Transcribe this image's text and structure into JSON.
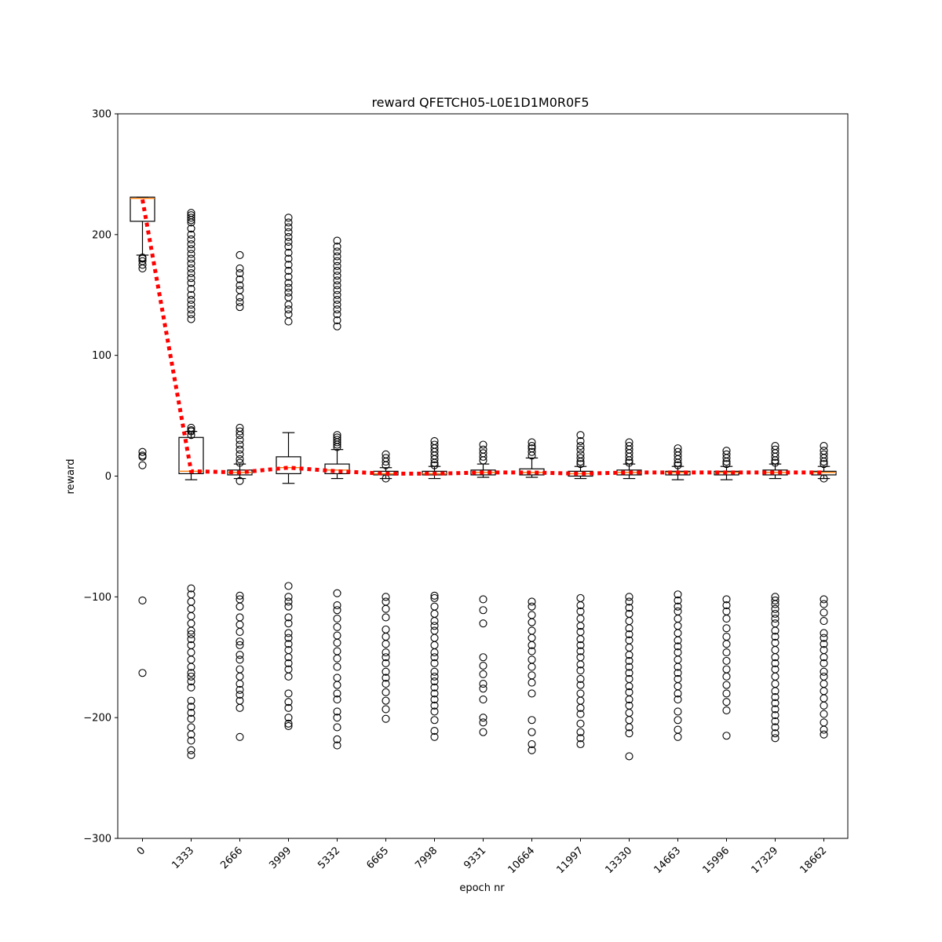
{
  "chart_data": {
    "type": "box",
    "title": "reward QFETCH05-L0E1D1M0R0F5",
    "xlabel": "epoch nr",
    "ylabel": "reward",
    "ylim": [
      -300,
      300
    ],
    "yticks": [
      "300",
      "200",
      "100",
      "0",
      "−100",
      "−200",
      "−300"
    ],
    "ytick_values": [
      300,
      200,
      100,
      0,
      -100,
      -200,
      -300
    ],
    "categories": [
      "0",
      "1333",
      "2666",
      "3999",
      "5332",
      "6665",
      "7998",
      "9331",
      "10664",
      "11997",
      "13330",
      "14663",
      "15996",
      "17329",
      "18662"
    ],
    "grid": false,
    "colors": {
      "box": "#000000",
      "median": "#ff7f0e",
      "mean_line": "#ff0000"
    },
    "boxes": [
      {
        "q1": 211,
        "median": 230,
        "q3": 231,
        "whislo": 183,
        "whishi": 231
      },
      {
        "q1": 2,
        "median": 4,
        "q3": 32,
        "whislo": -3,
        "whishi": 37
      },
      {
        "q1": 1,
        "median": 3,
        "q3": 5,
        "whislo": -2,
        "whishi": 10
      },
      {
        "q1": 2,
        "median": 7,
        "q3": 16,
        "whislo": -6,
        "whishi": 36
      },
      {
        "q1": 2,
        "median": 5,
        "q3": 10,
        "whislo": -2,
        "whishi": 22
      },
      {
        "q1": 1,
        "median": 2,
        "q3": 4,
        "whislo": -2,
        "whishi": 7
      },
      {
        "q1": 1,
        "median": 2,
        "q3": 4,
        "whislo": -2,
        "whishi": 8
      },
      {
        "q1": 1,
        "median": 3,
        "q3": 5,
        "whislo": -1,
        "whishi": 10
      },
      {
        "q1": 1,
        "median": 3,
        "q3": 6,
        "whislo": -1,
        "whishi": 15
      },
      {
        "q1": 0,
        "median": 2,
        "q3": 4,
        "whislo": -2,
        "whishi": 8
      },
      {
        "q1": 1,
        "median": 3,
        "q3": 5,
        "whislo": -2,
        "whishi": 10
      },
      {
        "q1": 1,
        "median": 3,
        "q3": 4,
        "whislo": -3,
        "whishi": 8
      },
      {
        "q1": 1,
        "median": 3,
        "q3": 4,
        "whislo": -3,
        "whishi": 8
      },
      {
        "q1": 1,
        "median": 3,
        "q3": 5,
        "whislo": -2,
        "whishi": 10
      },
      {
        "q1": 1,
        "median": 3,
        "q3": 4,
        "whislo": -2,
        "whishi": 8
      }
    ],
    "outliers": [
      [
        172,
        175,
        178,
        180,
        181,
        20,
        17,
        16,
        9,
        -103,
        -163
      ],
      [
        218,
        216,
        214,
        212,
        210,
        205,
        200,
        196,
        192,
        188,
        184,
        180,
        176,
        172,
        168,
        164,
        160,
        155,
        150,
        146,
        142,
        138,
        134,
        130,
        40,
        38,
        37,
        34,
        -93,
        -98,
        -104,
        -110,
        -116,
        -122,
        -128,
        -131,
        -135,
        -140,
        -146,
        -152,
        -158,
        -163,
        -166,
        -170,
        -175,
        -186,
        -191,
        -196,
        -201,
        -208,
        -214,
        -219,
        -227,
        -231
      ],
      [
        183,
        172,
        168,
        163,
        158,
        154,
        148,
        144,
        140,
        40,
        37,
        34,
        30,
        26,
        22,
        18,
        14,
        11,
        -4,
        -99,
        -102,
        -108,
        -117,
        -123,
        -129,
        -137,
        -140,
        -148,
        -152,
        -160,
        -166,
        -172,
        -177,
        -181,
        -186,
        -192,
        -216
      ],
      [
        214,
        210,
        206,
        202,
        198,
        194,
        190,
        185,
        180,
        175,
        170,
        165,
        160,
        156,
        152,
        148,
        142,
        138,
        134,
        128,
        -91,
        -100,
        -104,
        -108,
        -117,
        -122,
        -130,
        -134,
        -139,
        -144,
        -150,
        -155,
        -160,
        -166,
        -180,
        -187,
        -192,
        -200,
        -205,
        -207
      ],
      [
        195,
        190,
        186,
        182,
        178,
        174,
        170,
        166,
        162,
        158,
        154,
        150,
        146,
        142,
        138,
        134,
        129,
        124,
        34,
        32,
        30,
        28,
        26,
        24,
        -97,
        -107,
        -111,
        -118,
        -125,
        -132,
        -138,
        -145,
        -151,
        -158,
        -167,
        -173,
        -180,
        -185,
        -195,
        -200,
        -208,
        -218,
        -223
      ],
      [
        18,
        15,
        12,
        9,
        -2,
        -100,
        -104,
        -110,
        -117,
        -127,
        -133,
        -139,
        -146,
        -150,
        -155,
        -162,
        -167,
        -172,
        -179,
        -186,
        -193,
        -201
      ],
      [
        29,
        26,
        23,
        20,
        17,
        14,
        11,
        9,
        -99,
        -101,
        -108,
        -114,
        -120,
        -124,
        -128,
        -134,
        -140,
        -146,
        -150,
        -155,
        -162,
        -166,
        -170,
        -175,
        -180,
        -185,
        -190,
        -195,
        -202,
        -211,
        -216
      ],
      [
        26,
        22,
        19,
        16,
        13,
        -102,
        -111,
        -122,
        -150,
        -157,
        -164,
        -172,
        -176,
        -185,
        -200,
        -204,
        -212
      ],
      [
        28,
        25,
        23,
        20,
        17,
        -104,
        -108,
        -115,
        -121,
        -128,
        -134,
        -140,
        -145,
        -152,
        -158,
        -165,
        -171,
        -180,
        -202,
        -212,
        -222,
        -227
      ],
      [
        34,
        29,
        25,
        22,
        18,
        15,
        12,
        10,
        -101,
        -107,
        -112,
        -118,
        -124,
        -129,
        -135,
        -140,
        -145,
        -150,
        -156,
        -161,
        -168,
        -173,
        -180,
        -186,
        -192,
        -197,
        -205,
        -212,
        -217,
        -222
      ],
      [
        28,
        25,
        22,
        19,
        16,
        13,
        11,
        -100,
        -104,
        -109,
        -114,
        -120,
        -126,
        -131,
        -136,
        -142,
        -148,
        -153,
        -158,
        -163,
        -168,
        -174,
        -179,
        -185,
        -190,
        -196,
        -202,
        -208,
        -213,
        -232
      ],
      [
        23,
        20,
        17,
        14,
        11,
        9,
        -98,
        -103,
        -108,
        -112,
        -118,
        -124,
        -130,
        -136,
        -141,
        -146,
        -152,
        -158,
        -163,
        -168,
        -174,
        -180,
        -185,
        -195,
        -202,
        -210,
        -216
      ],
      [
        21,
        18,
        15,
        12,
        10,
        -102,
        -107,
        -112,
        -118,
        -126,
        -133,
        -139,
        -146,
        -153,
        -160,
        -166,
        -173,
        -180,
        -187,
        -194,
        -215
      ],
      [
        25,
        22,
        19,
        16,
        13,
        11,
        -100,
        -103,
        -106,
        -110,
        -114,
        -118,
        -122,
        -128,
        -133,
        -138,
        -144,
        -150,
        -155,
        -160,
        -166,
        -172,
        -178,
        -183,
        -188,
        -193,
        -198,
        -203,
        -208,
        -213,
        -217
      ],
      [
        25,
        21,
        18,
        15,
        12,
        10,
        -2,
        -102,
        -106,
        -113,
        -120,
        -130,
        -134,
        -139,
        -144,
        -150,
        -155,
        -162,
        -166,
        -172,
        -178,
        -184,
        -190,
        -197,
        -204,
        -210,
        -214
      ]
    ],
    "mean_line": [
      229,
      4,
      3,
      7,
      4,
      2,
      2,
      3,
      3,
      2,
      3,
      3,
      3,
      3,
      3
    ]
  }
}
